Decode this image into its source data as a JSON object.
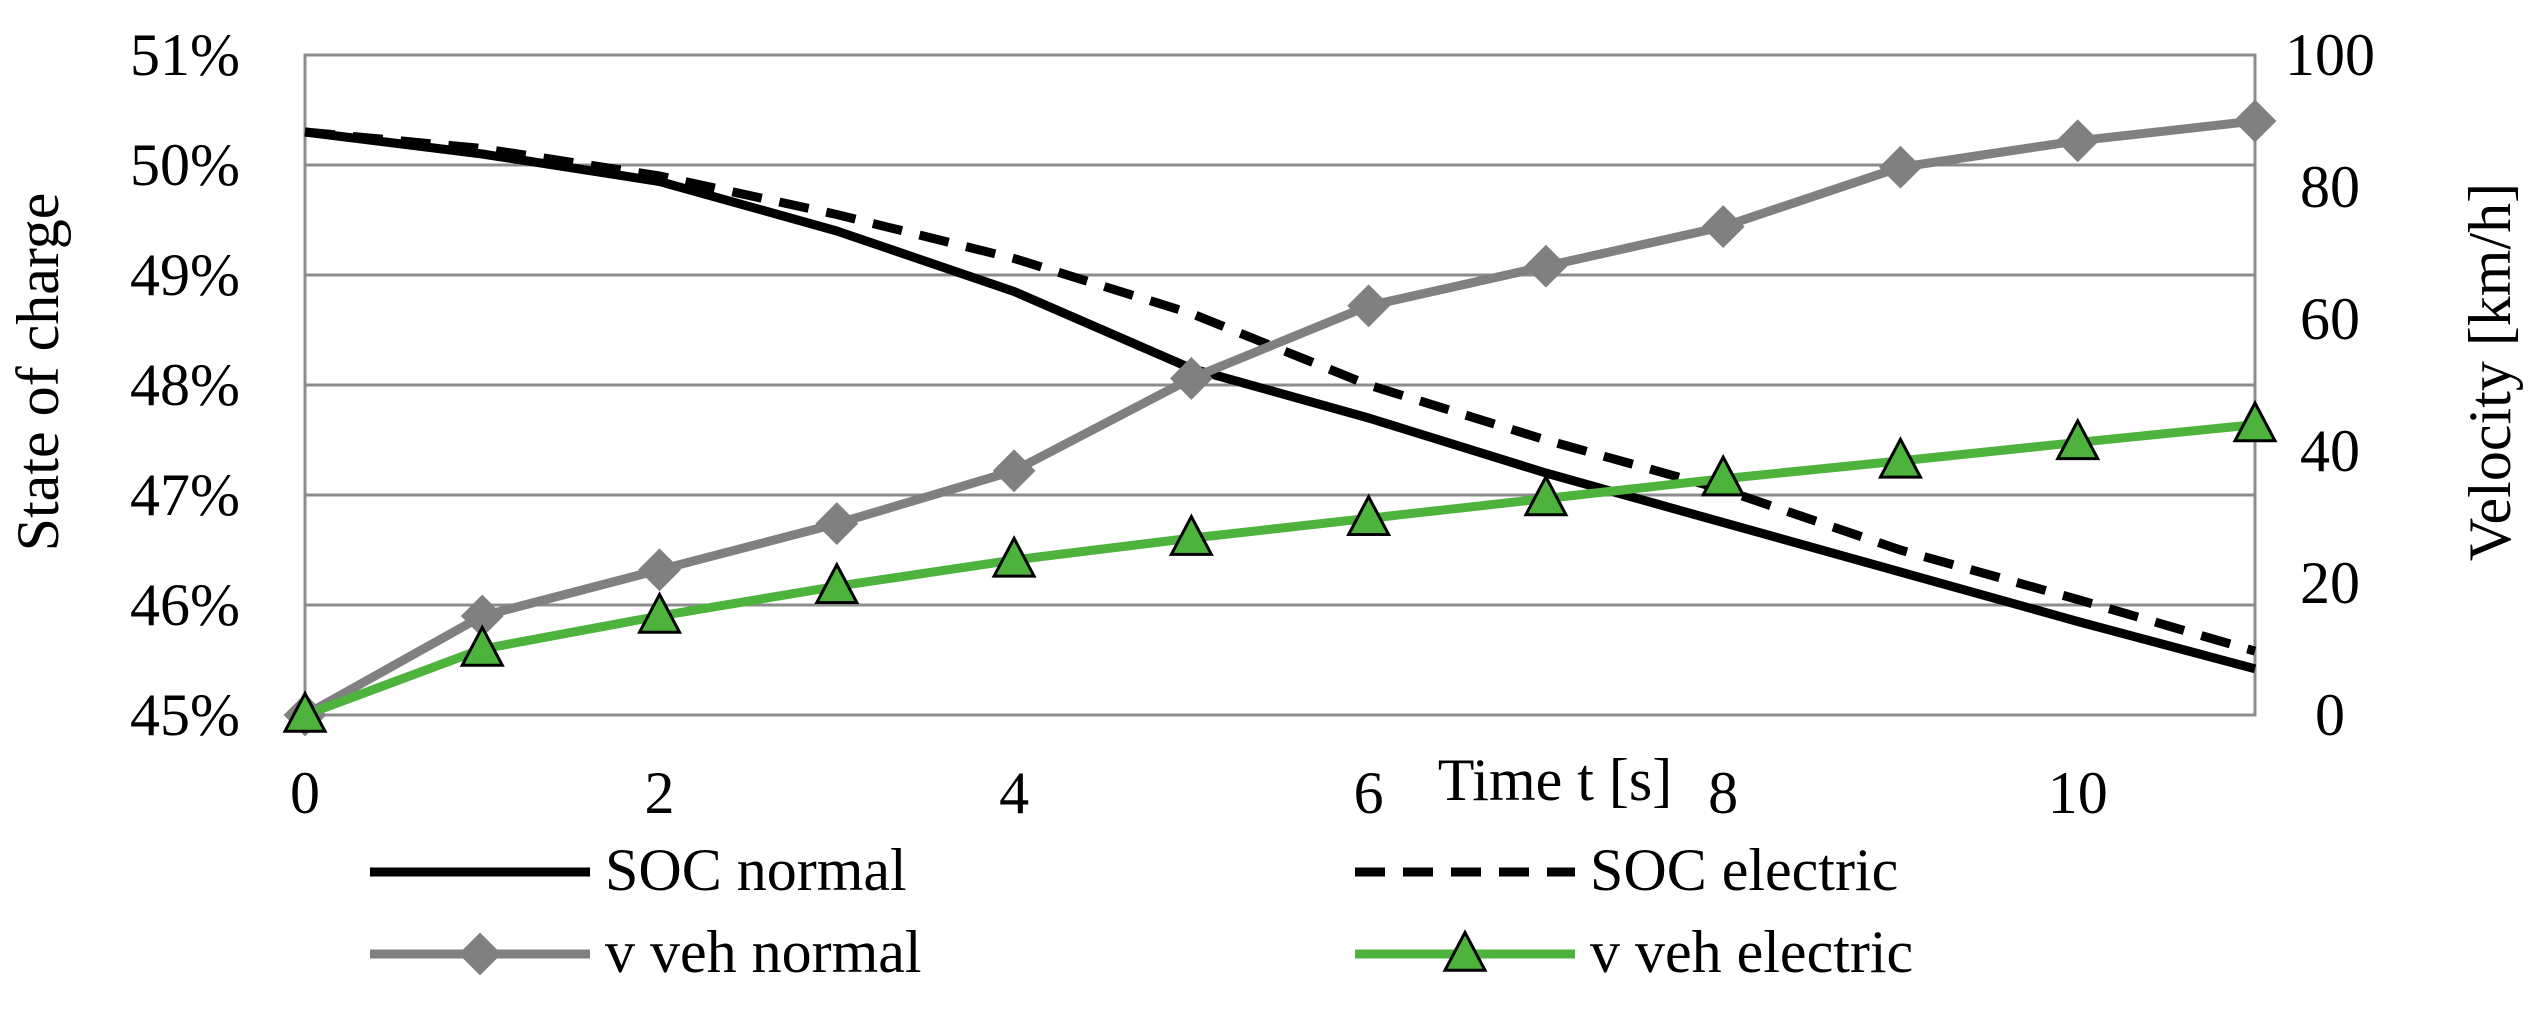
{
  "chart_data": {
    "type": "line",
    "title": "",
    "xlabel": "Time t [s]",
    "ylabel": "State of charge",
    "ylabel_right": "Velocity [km/h]",
    "xlim": [
      0,
      11
    ],
    "ylim": [
      45,
      51
    ],
    "ylim_right": [
      0,
      100
    ],
    "x_ticks": [
      0,
      2,
      4,
      6,
      8,
      10
    ],
    "x_tick_labels": [
      "0",
      "2",
      "4",
      "6",
      "8",
      "10"
    ],
    "y_ticks": [
      45,
      46,
      47,
      48,
      49,
      50,
      51
    ],
    "y_tick_labels": [
      "45%",
      "46%",
      "47%",
      "48%",
      "49%",
      "50%",
      "51%"
    ],
    "y_right_ticks": [
      0,
      20,
      40,
      60,
      80,
      100
    ],
    "y_right_tick_labels": [
      "0",
      "20",
      "40",
      "60",
      "80",
      "100"
    ],
    "grid": true,
    "legend_position": "bottom",
    "series": [
      {
        "name": "SOC normal",
        "axis": "left",
        "color": "#000000",
        "style": "solid",
        "marker": "none",
        "x": [
          0,
          1,
          2,
          3,
          4,
          5,
          6,
          7,
          8,
          9,
          10,
          11
        ],
        "values": [
          50.3,
          50.1,
          49.85,
          49.4,
          48.85,
          48.15,
          47.7,
          47.2,
          46.75,
          46.3,
          45.85,
          45.42
        ]
      },
      {
        "name": "SOC electric",
        "axis": "left",
        "color": "#000000",
        "style": "dashed",
        "marker": "none",
        "x": [
          0,
          1,
          2,
          3,
          4,
          5,
          6,
          7,
          8,
          9,
          10,
          11
        ],
        "values": [
          50.3,
          50.15,
          49.9,
          49.55,
          49.15,
          48.65,
          48.0,
          47.5,
          47.05,
          46.5,
          46.05,
          45.58
        ]
      },
      {
        "name": "v veh normal",
        "axis": "right",
        "color": "#808080",
        "style": "solid",
        "marker": "diamond",
        "x": [
          0,
          1,
          2,
          3,
          4,
          5,
          6,
          7,
          8,
          9,
          10,
          11
        ],
        "values": [
          0,
          15,
          22,
          29,
          37,
          51,
          62,
          68,
          74,
          83,
          87,
          90
        ]
      },
      {
        "name": "v veh electric",
        "axis": "right",
        "color": "#4db33d",
        "style": "solid",
        "marker": "triangle",
        "x": [
          0,
          1,
          2,
          3,
          4,
          5,
          6,
          7,
          8,
          9,
          10,
          11
        ],
        "values": [
          0,
          10,
          15,
          19.5,
          23.5,
          26.8,
          29.8,
          32.8,
          35.8,
          38.5,
          41.3,
          44
        ]
      }
    ]
  }
}
